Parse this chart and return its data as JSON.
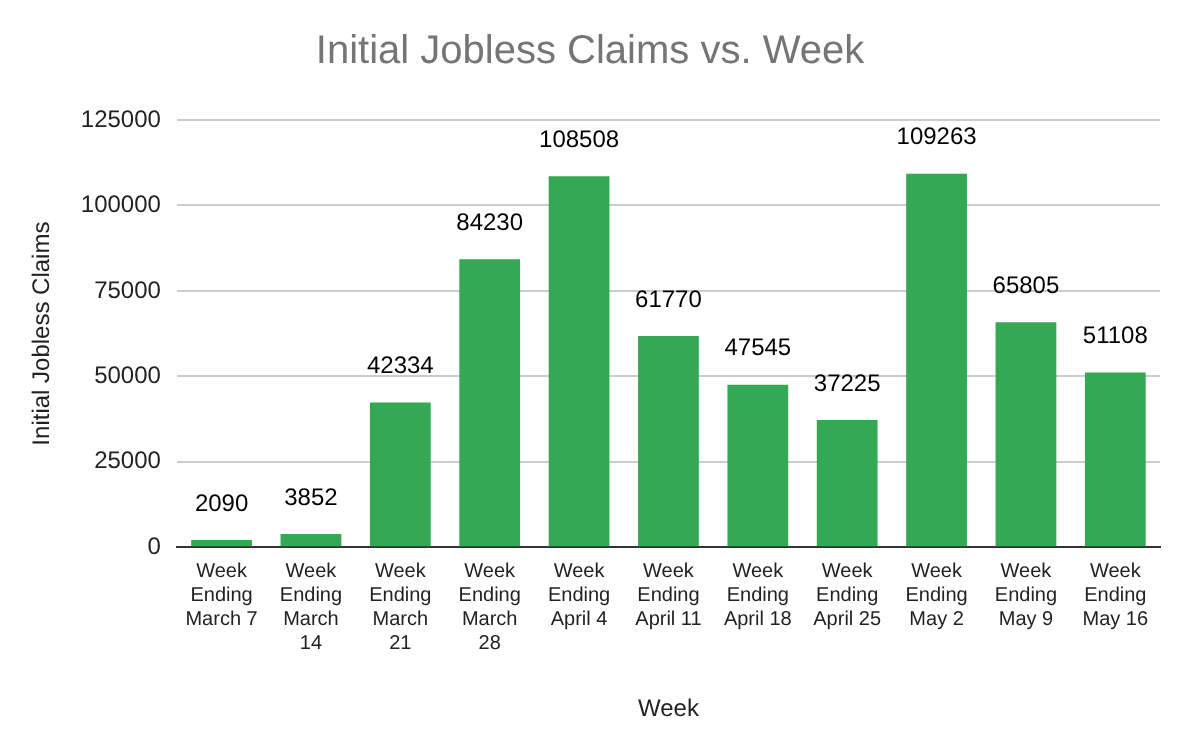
{
  "chart_data": {
    "type": "bar",
    "title": "Initial Jobless Claims vs. Week",
    "xlabel": "Week",
    "ylabel": "Initial Jobless Claims",
    "categories": [
      "Week Ending March 7",
      "Week Ending March 14",
      "Week Ending March 21",
      "Week Ending March 28",
      "Week Ending April 4",
      "Week Ending April 11",
      "Week Ending April 18",
      "Week Ending April 25",
      "Week Ending May 2",
      "Week Ending May 9",
      "Week Ending May 16"
    ],
    "values": [
      2090,
      3852,
      42334,
      84230,
      108508,
      61770,
      47545,
      37225,
      109263,
      65805,
      51108
    ],
    "color": "#34a853",
    "ylim": [
      0,
      125000
    ],
    "yticks": [
      0,
      25000,
      50000,
      75000,
      100000,
      125000
    ],
    "grid": "y",
    "data_labels": true
  }
}
